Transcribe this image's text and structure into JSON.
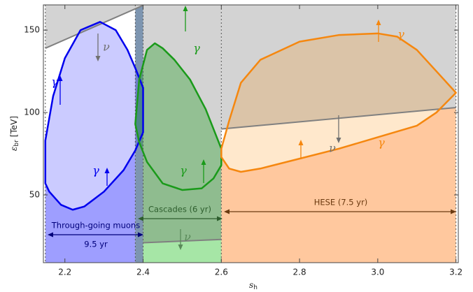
{
  "chart_data": {
    "type": "region",
    "xlabel": {
      "symbol": "s",
      "sub": "h"
    },
    "ylabel": {
      "symbol": "ε",
      "sub": "br",
      "unit": "[TeV]"
    },
    "xlim": [
      2.145,
      3.206
    ],
    "ylim": [
      8.9,
      165.3
    ],
    "xticks": [
      2.2,
      2.4,
      2.6,
      2.8,
      {
        "value": 3,
        "label": "3.0"
      },
      3.2
    ],
    "yticks": [
      50,
      100,
      150
    ],
    "background": "#d3d3d3",
    "regions": [
      {
        "x": [
          2.15,
          2.38
        ],
        "floor": "#9e9eff",
        "contour": 0
      },
      {
        "x": [
          2.38,
          2.4
        ],
        "floor": "#7d95b0"
      },
      {
        "x": [
          2.4,
          2.6
        ],
        "floor": "#8fbc8f",
        "contour": 1,
        "back": "#d3d3d3"
      },
      {
        "x": [
          2.6,
          3.2
        ],
        "floor": "#ffc89e",
        "contour": 2
      }
    ],
    "bounds": [
      {
        "x": [
          2.15,
          2.4
        ],
        "values": [
          139,
          165
        ],
        "side": "above",
        "fill": "#d3d3d3",
        "color": "#808080"
      },
      {
        "x": [
          2.6,
          3.2
        ],
        "values": [
          90,
          103
        ],
        "side": "above",
        "fill": "#d3d3d3",
        "color": "#808080"
      },
      {
        "x": [
          2.4,
          2.6
        ],
        "values": [
          21,
          23
        ],
        "side": "below",
        "fill": "#a6e6a6",
        "color": "#808080"
      }
    ],
    "series": [
      {
        "color": "#0000ee",
        "fill": "rgba(70,70,255,0.28)",
        "x": [
          2.15,
          2.17,
          2.2,
          2.24,
          2.29,
          2.33,
          2.36,
          2.38,
          2.4,
          2.4,
          2.38,
          2.35,
          2.3,
          2.25,
          2.22,
          2.19,
          2.16,
          2.15
        ],
        "values": [
          83,
          110,
          133,
          150,
          155,
          150,
          138,
          127,
          115,
          88,
          77,
          65,
          52,
          43,
          41,
          44,
          52,
          57
        ]
      },
      {
        "color": "#1a9a1a",
        "fill": "rgba(0,150,0,0.3)",
        "x": [
          2.38,
          2.39,
          2.41,
          2.43,
          2.45,
          2.48,
          2.52,
          2.56,
          2.6,
          2.6,
          2.58,
          2.55,
          2.5,
          2.45,
          2.41,
          2.39
        ],
        "values": [
          93,
          120,
          138,
          142,
          139,
          132,
          120,
          102,
          78,
          68,
          60,
          54,
          53,
          57,
          70,
          82
        ]
      },
      {
        "color": "#f5870f",
        "fill": "rgba(255,140,0,0.2)",
        "x": [
          2.6,
          2.62,
          2.65,
          2.7,
          2.8,
          2.9,
          3.0,
          3.05,
          3.1,
          3.15,
          3.2,
          3.15,
          3.1,
          3.0,
          2.9,
          2.8,
          2.7,
          2.65,
          2.62,
          2.6
        ],
        "values": [
          78,
          95,
          118,
          132,
          143,
          147,
          148,
          146,
          138,
          125,
          112,
          100,
          92,
          85,
          78,
          72,
          66,
          64,
          66,
          73
        ]
      }
    ],
    "annotations": [
      {
        "text": "γ",
        "color": "#0000ee"
      },
      {
        "text": "ν",
        "color": "#707070"
      },
      {
        "text": "γ",
        "color": "#0000ee"
      },
      {
        "text": "γ",
        "color": "#1a9a1a"
      },
      {
        "text": "γ",
        "color": "#1a9a1a"
      },
      {
        "text": "ν",
        "color": "#5a8a5a"
      },
      {
        "text": "γ",
        "color": "#f5870f"
      },
      {
        "text": "ν",
        "color": "#707070"
      },
      {
        "text": "γ",
        "color": "#f5870f"
      },
      {
        "text": "Cascades (6 yr)",
        "color": "#2e5e2e"
      },
      {
        "text": "HESE (7.5 yr)",
        "color": "#6b3a10"
      },
      {
        "text": "Through-going muons",
        "color": "#00007a"
      },
      {
        "text": "9.5 yr",
        "color": "#00007a"
      }
    ]
  }
}
